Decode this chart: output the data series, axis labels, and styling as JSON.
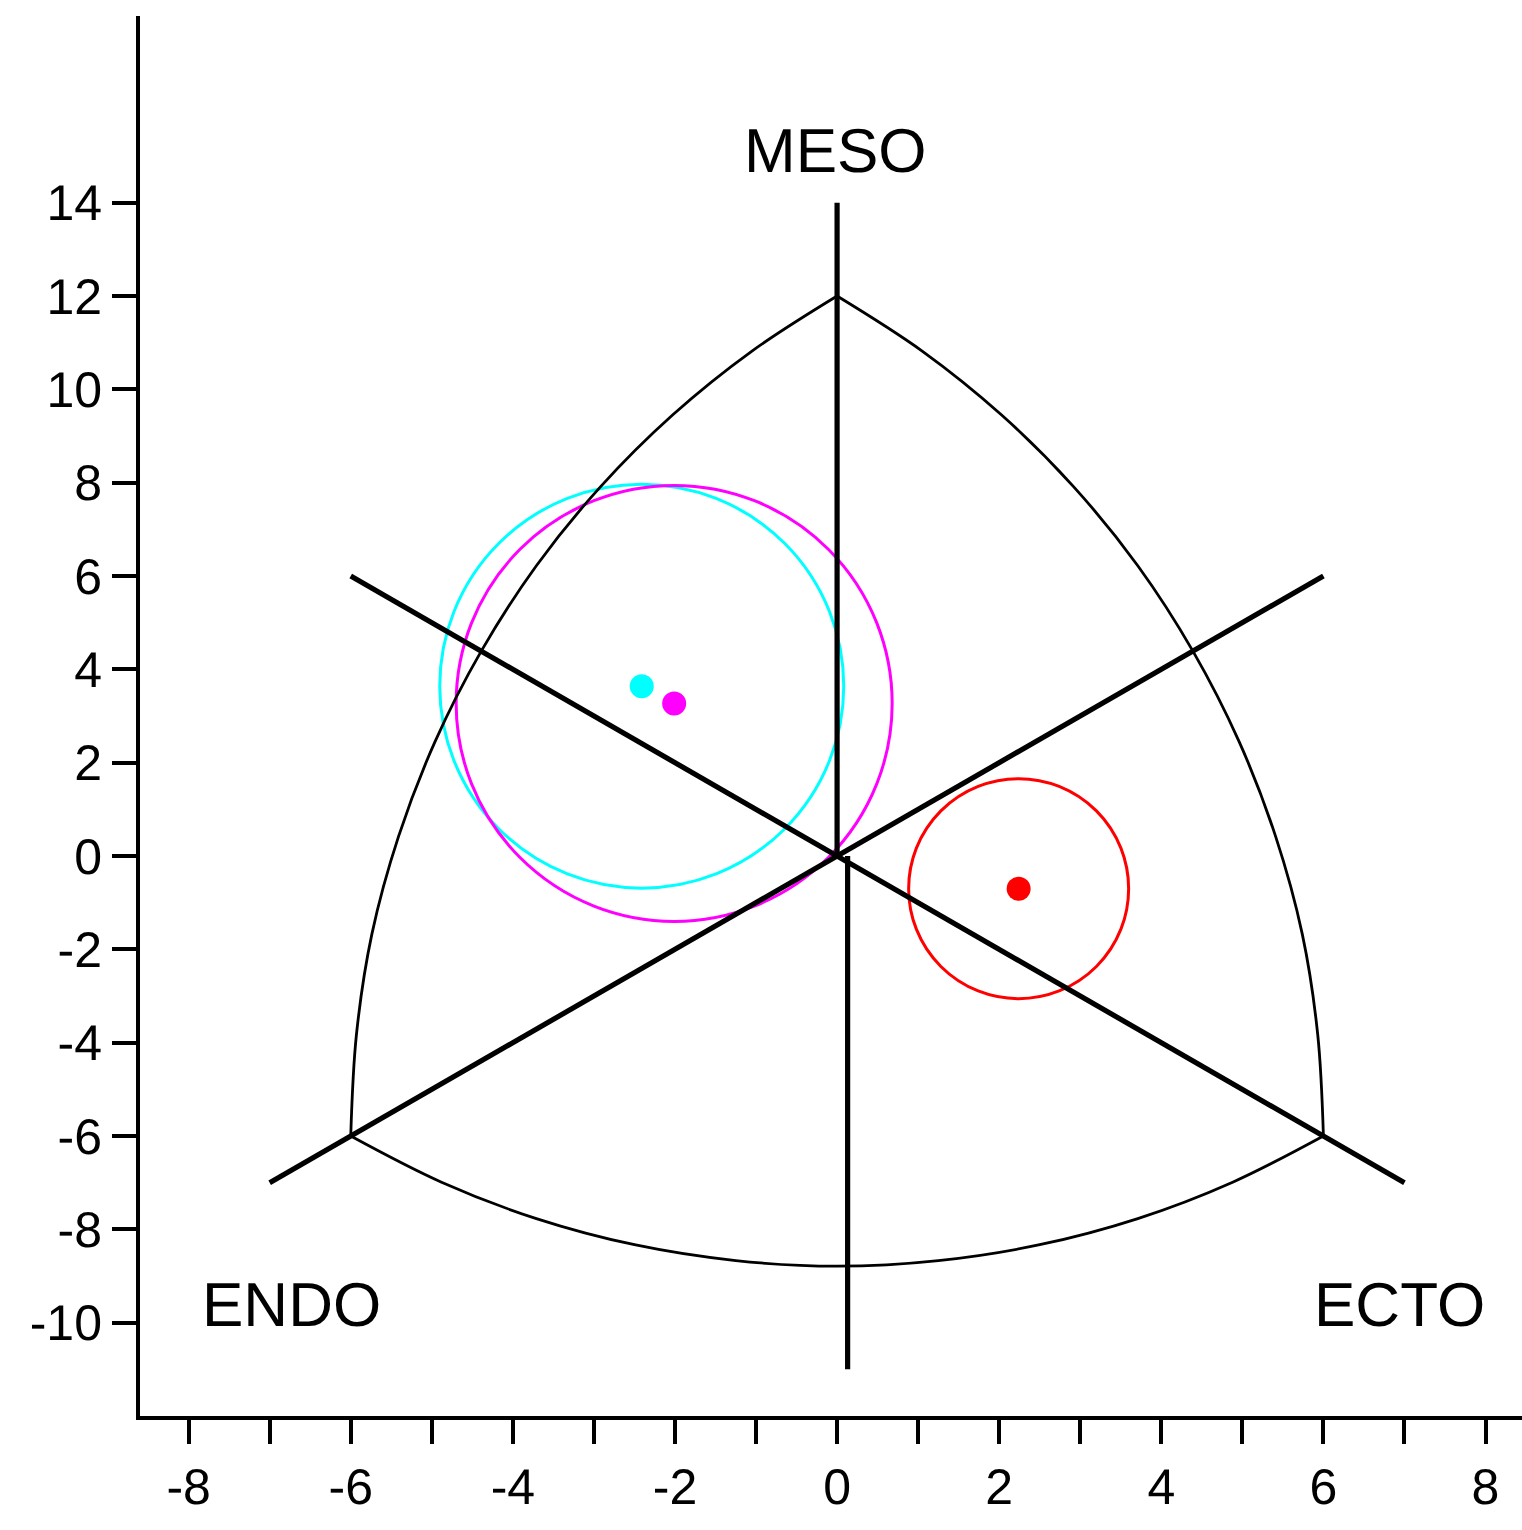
{
  "chart_data": {
    "type": "scatter",
    "xlim": [
      -8.6,
      8.45
    ],
    "ylim": [
      -12,
      18
    ],
    "xticks": [
      -8,
      {
        "value": -7,
        "label": null
      },
      -6,
      {
        "value": -5,
        "label": null
      },
      -4,
      {
        "value": -3,
        "label": null
      },
      -2,
      {
        "value": -1,
        "label": null
      },
      0,
      {
        "value": 1,
        "label": null
      },
      2,
      {
        "value": 3,
        "label": null
      },
      4,
      {
        "value": 5,
        "label": null
      },
      6,
      {
        "value": 7,
        "label": null
      },
      8
    ],
    "yticks": [
      -10,
      -8,
      -6,
      -4,
      -2,
      0,
      2,
      4,
      6,
      8,
      10,
      12,
      14
    ],
    "annotations": [
      "MESO",
      "ENDO",
      "ECTO"
    ],
    "series": [
      {
        "type": "line",
        "color": "#000000",
        "x": [
          0,
          0
        ],
        "values": [
          14,
          0
        ]
      },
      {
        "type": "line",
        "color": "#000000",
        "x": [
          0.13,
          0.13
        ],
        "values": [
          0,
          -11
        ]
      },
      {
        "type": "line",
        "color": "#000000",
        "x": [
          -6,
          7
        ],
        "values": [
          6,
          -7
        ]
      },
      {
        "type": "line",
        "color": "#000000",
        "x": [
          -7,
          6
        ],
        "values": [
          -7,
          6
        ]
      },
      {
        "type": "line",
        "color": "#000000",
        "x": [
          0,
          -1.05,
          -2.03,
          -2.92,
          -3.71,
          -4.39,
          -4.96,
          -5.41,
          -5.74,
          -5.93,
          -6
        ],
        "values": [
          12,
          10.82,
          9.45,
          7.91,
          6.22,
          4.39,
          2.45,
          0.42,
          -1.68,
          -3.83,
          -6
        ]
      },
      {
        "type": "line",
        "color": "#000000",
        "x": [
          -6,
          -4.88,
          -3.71,
          -2.5,
          -1.25,
          0,
          1.25,
          2.5,
          3.71,
          4.88,
          6
        ],
        "values": [
          -6,
          -6.99,
          -7.77,
          -8.33,
          -8.67,
          -8.79,
          -8.67,
          -8.33,
          -7.77,
          -6.99,
          -6
        ]
      },
      {
        "type": "line",
        "color": "#000000",
        "x": [
          6,
          5.93,
          5.74,
          5.41,
          4.96,
          4.39,
          3.71,
          2.92,
          2.03,
          1.05,
          0
        ],
        "values": [
          -6,
          -3.83,
          -1.68,
          0.42,
          2.45,
          4.39,
          6.22,
          7.91,
          9.45,
          10.82,
          12
        ]
      },
      {
        "marker": "circle",
        "x": [
          -2.41,
          -2.01,
          2.24
        ],
        "values": [
          3.64,
          3.27,
          -0.7
        ],
        "colors": [
          "#00ffff",
          "#ff00ff",
          "#ff0000"
        ]
      }
    ]
  }
}
